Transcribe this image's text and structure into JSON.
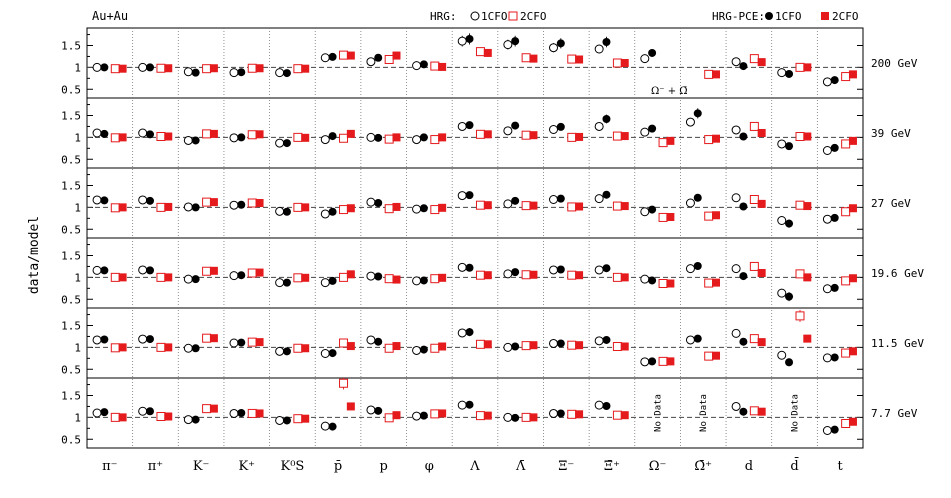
{
  "chart_data": {
    "type": "scatter",
    "title": "Au+Au",
    "ylabel": "data/model",
    "ylim": [
      0.3,
      1.9
    ],
    "yticks": [
      "0.5",
      "1",
      "1.5"
    ],
    "grid": "dotted vertical separators",
    "legend": {
      "hrg_label": "HRG:",
      "hrg_1cfo": "1CFO",
      "hrg_2cfo": "2CFO",
      "pce_label": "HRG-PCE:",
      "pce_1cfo": "1CFO",
      "pce_2cfo": "2CFO",
      "placement": "top"
    },
    "colors": {
      "cfo1": "#000000",
      "cfo2": "#e41a1c",
      "grid": "#777777"
    },
    "categories": [
      "π⁻",
      "π⁺",
      "K⁻",
      "K⁺",
      "K⁰S",
      "p̄",
      "p",
      "φ",
      "Λ",
      "Λ̄",
      "Ξ⁻",
      "Ξ̄⁺",
      "Ω⁻",
      "Ω̄⁺",
      "d",
      "d̄",
      "t"
    ],
    "note_200": "Ω⁻ + Ω̄",
    "nodata_label": "No Data",
    "series_order": [
      "hrg_1cfo",
      "pce_1cfo",
      "hrg_2cfo",
      "pce_2cfo"
    ],
    "rows": [
      {
        "energy": "200 GeV",
        "values": [
          [
            1.0,
            1.0,
            0.97,
            0.97
          ],
          [
            1.0,
            1.0,
            0.98,
            0.98
          ],
          [
            0.9,
            0.88,
            0.97,
            0.98
          ],
          [
            0.88,
            0.89,
            0.98,
            0.98
          ],
          [
            0.88,
            0.87,
            0.97,
            0.97
          ],
          [
            1.22,
            1.24,
            1.28,
            1.27
          ],
          [
            1.13,
            1.22,
            1.18,
            1.27
          ],
          [
            1.04,
            1.07,
            1.03,
            1.01
          ],
          [
            1.6,
            1.65,
            1.36,
            1.33
          ],
          [
            1.52,
            1.6,
            1.22,
            1.2
          ],
          [
            1.45,
            1.55,
            1.19,
            1.18
          ],
          [
            1.42,
            1.58,
            1.1,
            1.1
          ],
          [
            1.2,
            1.33,
            null,
            null
          ],
          [
            null,
            null,
            0.84,
            0.84
          ],
          [
            1.13,
            1.03,
            1.2,
            1.12
          ],
          [
            0.88,
            0.85,
            1.0,
            1.0
          ],
          [
            0.67,
            0.71,
            0.79,
            0.84
          ]
        ],
        "nodata": []
      },
      {
        "energy": "39 GeV",
        "values": [
          [
            1.1,
            1.08,
            0.99,
            1.0
          ],
          [
            1.1,
            1.07,
            1.02,
            1.02
          ],
          [
            0.93,
            0.93,
            1.08,
            1.08
          ],
          [
            0.99,
            1.0,
            1.06,
            1.07
          ],
          [
            0.87,
            0.87,
            1.0,
            0.99
          ],
          [
            0.95,
            1.03,
            0.98,
            1.08
          ],
          [
            1.0,
            0.99,
            0.96,
            1.0
          ],
          [
            0.95,
            1.0,
            0.95,
            1.0
          ],
          [
            1.25,
            1.28,
            1.07,
            1.07
          ],
          [
            1.15,
            1.27,
            1.05,
            1.05
          ],
          [
            1.18,
            1.24,
            1.0,
            1.01
          ],
          [
            1.25,
            1.42,
            1.03,
            1.03
          ],
          [
            1.12,
            1.2,
            0.88,
            0.92
          ],
          [
            1.35,
            1.55,
            0.95,
            0.97
          ],
          [
            1.17,
            1.02,
            1.25,
            1.1
          ],
          [
            0.85,
            0.8,
            1.02,
            1.02
          ],
          [
            0.7,
            0.76,
            0.85,
            0.92
          ]
        ],
        "nodata": []
      },
      {
        "energy": "27 GeV",
        "values": [
          [
            1.17,
            1.16,
            0.99,
            1.0
          ],
          [
            1.17,
            1.15,
            1.0,
            1.01
          ],
          [
            1.01,
            1.0,
            1.12,
            1.12
          ],
          [
            1.05,
            1.06,
            1.1,
            1.1
          ],
          [
            0.91,
            0.9,
            1.0,
            1.0
          ],
          [
            0.85,
            0.9,
            0.95,
            0.98
          ],
          [
            1.12,
            1.1,
            0.97,
            1.01
          ],
          [
            0.96,
            0.98,
            0.95,
            0.99
          ],
          [
            1.27,
            1.28,
            1.05,
            1.05
          ],
          [
            1.08,
            1.15,
            1.04,
            1.04
          ],
          [
            1.18,
            1.2,
            1.01,
            1.02
          ],
          [
            1.2,
            1.29,
            1.03,
            1.03
          ],
          [
            0.9,
            0.95,
            0.77,
            0.78
          ],
          [
            1.1,
            1.22,
            0.8,
            0.82
          ],
          [
            1.22,
            1.02,
            1.18,
            1.08
          ],
          [
            0.7,
            0.63,
            1.05,
            1.03
          ],
          [
            0.73,
            0.76,
            0.9,
            0.98
          ]
        ],
        "nodata": []
      },
      {
        "energy": "19.6 GeV",
        "values": [
          [
            1.16,
            1.16,
            1.0,
            1.0
          ],
          [
            1.17,
            1.16,
            1.0,
            1.0
          ],
          [
            0.96,
            0.96,
            1.14,
            1.15
          ],
          [
            1.04,
            1.05,
            1.1,
            1.11
          ],
          [
            0.88,
            0.88,
            0.99,
            0.99
          ],
          [
            0.88,
            0.92,
            1.0,
            1.07
          ],
          [
            1.03,
            1.02,
            0.97,
            0.95
          ],
          [
            0.92,
            0.93,
            0.97,
            0.99
          ],
          [
            1.23,
            1.22,
            1.05,
            1.05
          ],
          [
            1.08,
            1.12,
            1.06,
            1.06
          ],
          [
            1.17,
            1.18,
            1.05,
            1.05
          ],
          [
            1.17,
            1.21,
            1.0,
            1.0
          ],
          [
            0.96,
            0.93,
            0.86,
            0.86
          ],
          [
            1.2,
            1.26,
            0.87,
            0.88
          ],
          [
            1.2,
            1.03,
            1.25,
            1.1
          ],
          [
            0.64,
            0.56,
            1.08,
            1.0
          ],
          [
            0.74,
            0.76,
            0.92,
            0.98
          ]
        ],
        "nodata": []
      },
      {
        "energy": "11.5 GeV",
        "values": [
          [
            1.17,
            1.18,
            0.99,
            1.0
          ],
          [
            1.19,
            1.19,
            1.0,
            1.0
          ],
          [
            0.98,
            0.98,
            1.21,
            1.21
          ],
          [
            1.1,
            1.11,
            1.12,
            1.12
          ],
          [
            0.91,
            0.91,
            0.98,
            0.98
          ],
          [
            0.86,
            0.87,
            1.1,
            1.03
          ],
          [
            1.17,
            1.13,
            0.98,
            1.03
          ],
          [
            0.93,
            0.95,
            0.98,
            1.02
          ],
          [
            1.33,
            1.35,
            1.07,
            1.07
          ],
          [
            1.0,
            1.02,
            1.04,
            1.05
          ],
          [
            1.09,
            1.09,
            1.05,
            1.05
          ],
          [
            1.15,
            1.17,
            1.02,
            1.02
          ],
          [
            0.67,
            0.68,
            0.68,
            0.68
          ],
          [
            1.17,
            1.2,
            0.8,
            0.81
          ],
          [
            1.32,
            1.13,
            1.2,
            1.12
          ],
          [
            0.82,
            0.66,
            1.72,
            1.2
          ],
          [
            0.76,
            0.77,
            0.87,
            0.91
          ]
        ],
        "nodata": []
      },
      {
        "energy": "7.7 GeV",
        "values": [
          [
            1.1,
            1.12,
            1.0,
            1.0
          ],
          [
            1.14,
            1.14,
            1.02,
            1.02
          ],
          [
            0.95,
            0.95,
            1.2,
            1.2
          ],
          [
            1.09,
            1.1,
            1.09,
            1.09
          ],
          [
            0.93,
            0.93,
            0.97,
            0.97
          ],
          [
            0.8,
            0.79,
            1.78,
            1.25
          ],
          [
            1.17,
            1.15,
            0.99,
            1.05
          ],
          [
            1.03,
            1.04,
            1.08,
            1.09
          ],
          [
            1.28,
            1.29,
            1.04,
            1.04
          ],
          [
            1.0,
            0.99,
            1.0,
            1.0
          ],
          [
            1.09,
            1.09,
            1.07,
            1.07
          ],
          [
            1.28,
            1.26,
            1.05,
            1.05
          ],
          [
            null,
            null,
            null,
            null
          ],
          [
            null,
            null,
            null,
            null
          ],
          [
            1.25,
            1.13,
            1.15,
            1.13
          ],
          [
            null,
            null,
            null,
            null
          ],
          [
            0.7,
            0.72,
            0.86,
            0.9
          ]
        ],
        "nodata": [
          12,
          13,
          15
        ]
      }
    ]
  }
}
